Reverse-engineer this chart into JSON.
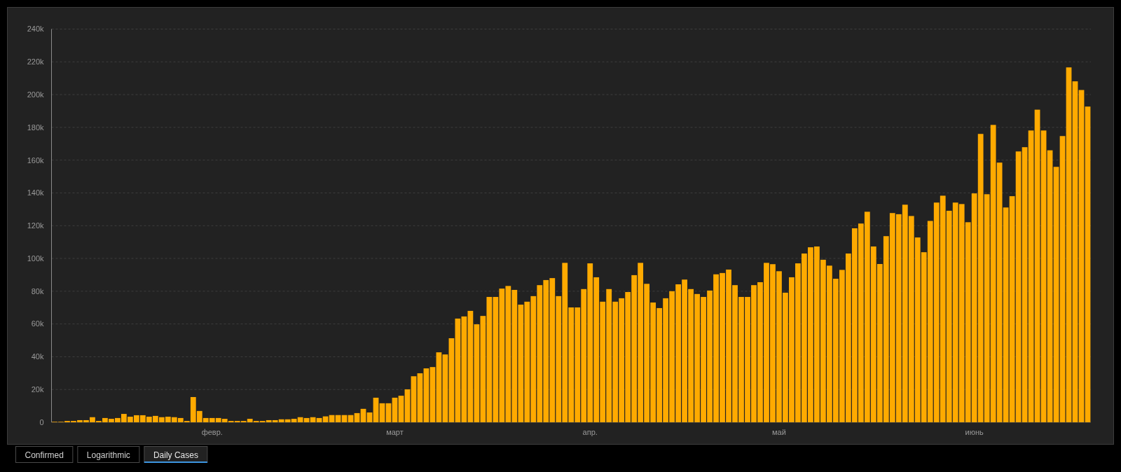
{
  "chart_data": {
    "type": "bar",
    "categories": [
      null,
      null,
      null,
      null,
      null,
      null,
      null,
      null,
      null,
      null,
      null,
      null,
      null,
      null,
      null,
      null,
      null,
      null,
      null,
      null,
      null,
      null,
      null,
      null,
      null,
      "февр.",
      null,
      null,
      null,
      null,
      null,
      null,
      null,
      null,
      null,
      null,
      null,
      null,
      null,
      null,
      null,
      null,
      null,
      null,
      null,
      null,
      null,
      null,
      null,
      null,
      null,
      null,
      null,
      null,
      "март",
      null,
      null,
      null,
      null,
      null,
      null,
      null,
      null,
      null,
      null,
      null,
      null,
      null,
      null,
      null,
      null,
      null,
      null,
      null,
      null,
      null,
      null,
      null,
      null,
      null,
      null,
      null,
      null,
      null,
      null,
      "апр.",
      null,
      null,
      null,
      null,
      null,
      null,
      null,
      null,
      null,
      null,
      null,
      null,
      null,
      null,
      null,
      null,
      null,
      null,
      null,
      null,
      null,
      null,
      null,
      null,
      null,
      null,
      null,
      null,
      null,
      "май",
      null,
      null,
      null,
      null,
      null,
      null,
      null,
      null,
      null,
      null,
      null,
      null,
      null,
      null,
      null,
      null,
      null,
      null,
      null,
      null,
      null,
      null,
      null,
      null,
      null,
      null,
      null,
      null,
      null,
      null,
      "июнь",
      null,
      null,
      null,
      null,
      null,
      null,
      null,
      null,
      null,
      null,
      null,
      null,
      null,
      null,
      null,
      null,
      null,
      null
    ],
    "values": [
      300,
      300,
      800,
      800,
      1300,
      1300,
      3100,
      800,
      2600,
      2100,
      2600,
      5100,
      3400,
      4300,
      4300,
      3400,
      3900,
      3100,
      3400,
      3100,
      2600,
      800,
      15400,
      6900,
      2600,
      2600,
      2600,
      2100,
      800,
      800,
      800,
      2100,
      800,
      800,
      1300,
      1300,
      1800,
      1800,
      2100,
      3100,
      2600,
      3100,
      2600,
      3600,
      4400,
      4400,
      4400,
      4400,
      5600,
      8200,
      6000,
      15000,
      11600,
      11600,
      15000,
      16200,
      20100,
      28100,
      29900,
      32900,
      33700,
      42700,
      41400,
      51300,
      63300,
      64600,
      68000,
      59800,
      64900,
      76500,
      76500,
      81600,
      83200,
      80800,
      71800,
      73600,
      77000,
      83700,
      86800,
      88000,
      77000,
      97300,
      70100,
      70100,
      81300,
      97000,
      88500,
      73600,
      81300,
      73600,
      75700,
      79500,
      89800,
      97300,
      84500,
      73100,
      69700,
      75700,
      80000,
      84200,
      87100,
      81300,
      78300,
      76500,
      80400,
      90300,
      91100,
      93200,
      83700,
      76500,
      76500,
      83700,
      85500,
      97300,
      96500,
      92200,
      79100,
      88500,
      97000,
      103000,
      106800,
      107300,
      99200,
      95600,
      87600,
      93000,
      103000,
      118400,
      121300,
      128500,
      107300,
      96600,
      113600,
      127700,
      127000,
      132800,
      125900,
      112800,
      103800,
      122900,
      134100,
      138300,
      129100,
      134100,
      133200,
      122100,
      139700,
      176000,
      139200,
      181500,
      158500,
      131100,
      138000,
      165300,
      167900,
      178100,
      190800,
      178100,
      166000,
      155900,
      174700,
      216600,
      208100,
      202800,
      192700
    ],
    "color": "#ffaa00",
    "ylim": [
      0,
      240000
    ],
    "yticks": [
      0,
      {
        "value": 20000,
        "label": "20k"
      },
      {
        "value": 40000,
        "label": "40k"
      },
      {
        "value": 60000,
        "label": "60k"
      },
      {
        "value": 80000,
        "label": "80k"
      },
      {
        "value": 100000,
        "label": "100k"
      },
      {
        "value": 120000,
        "label": "120k"
      },
      {
        "value": 140000,
        "label": "140k"
      },
      {
        "value": 160000,
        "label": "160k"
      },
      {
        "value": 180000,
        "label": "180k"
      },
      {
        "value": 200000,
        "label": "200k"
      },
      {
        "value": 220000,
        "label": "220k"
      },
      {
        "value": 240000,
        "label": "240k"
      }
    ],
    "grid": "y",
    "annotations": [
      "Confirmed",
      "Logarithmic",
      "Daily Cases"
    ]
  }
}
